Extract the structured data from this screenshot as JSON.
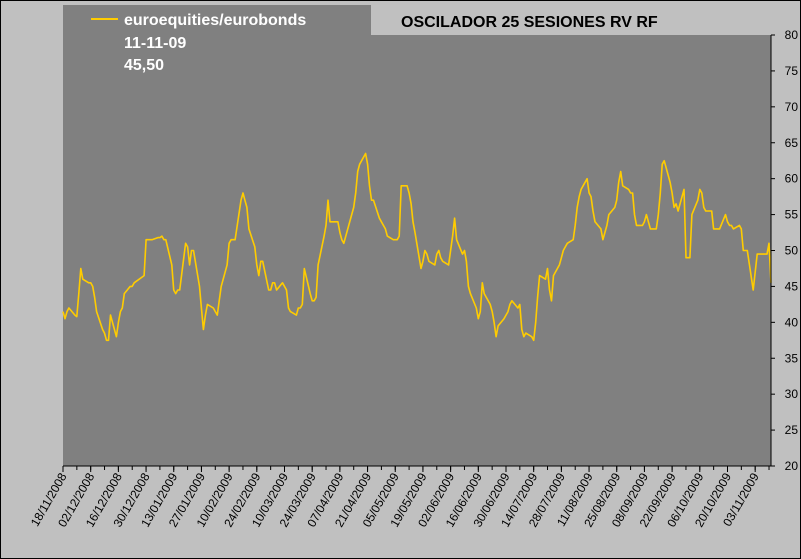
{
  "chart_data": {
    "type": "line",
    "title": "OSCILADOR 25 SESIONES RV RF",
    "legend": {
      "series_name": "euroequities/eurobonds",
      "date": "11-11-09",
      "value": "45,50",
      "placement": "top-left"
    },
    "ylim": [
      20,
      80
    ],
    "yticks": [
      20,
      25,
      30,
      35,
      40,
      45,
      50,
      55,
      60,
      65,
      70,
      75,
      80
    ],
    "y_axis_position": "right",
    "grid": false,
    "xlim": [
      "2008-11-18",
      "2009-11-11"
    ],
    "xtick_labels": [
      "18/11/2008",
      "02/12/2008",
      "16/12/2008",
      "30/12/2008",
      "13/01/2009",
      "27/01/2009",
      "10/02/2009",
      "24/02/2009",
      "10/03/2009",
      "24/03/2009",
      "07/04/2009",
      "21/04/2009",
      "05/05/2009",
      "19/05/2009",
      "02/06/2009",
      "16/06/2009",
      "30/06/2009",
      "14/07/2009",
      "28/07/2009",
      "11/08/2009",
      "25/08/2009",
      "08/09/2009",
      "22/09/2009",
      "06/10/2009",
      "20/10/2009",
      "03/11/2009"
    ],
    "colors": {
      "background": "#c0c0c0",
      "plot_area": "#808080",
      "line": "#ffcc00",
      "legend_box": "#808080",
      "legend_text": "#ffffff"
    },
    "series": [
      {
        "name": "euroequities/eurobonds",
        "points": [
          [
            "2008-11-18",
            41.5
          ],
          [
            "2008-11-19",
            40.5
          ],
          [
            "2008-11-20",
            41.5
          ],
          [
            "2008-11-21",
            42.0
          ],
          [
            "2008-11-24",
            41.0
          ],
          [
            "2008-11-25",
            40.8
          ],
          [
            "2008-11-26",
            44.0
          ],
          [
            "2008-11-27",
            47.5
          ],
          [
            "2008-11-28",
            46.0
          ],
          [
            "2008-12-01",
            45.5
          ],
          [
            "2008-12-02",
            45.5
          ],
          [
            "2008-12-03",
            45.0
          ],
          [
            "2008-12-04",
            43.5
          ],
          [
            "2008-12-05",
            41.5
          ],
          [
            "2008-12-08",
            39.0
          ],
          [
            "2008-12-09",
            38.5
          ],
          [
            "2008-12-10",
            37.5
          ],
          [
            "2008-12-11",
            37.5
          ],
          [
            "2008-12-12",
            41.0
          ],
          [
            "2008-12-15",
            38.0
          ],
          [
            "2008-12-16",
            40.0
          ],
          [
            "2008-12-17",
            41.5
          ],
          [
            "2008-12-18",
            42.0
          ],
          [
            "2008-12-19",
            44.0
          ],
          [
            "2008-12-22",
            45.0
          ],
          [
            "2008-12-23",
            45.0
          ],
          [
            "2008-12-24",
            45.5
          ],
          [
            "2008-12-29",
            46.5
          ],
          [
            "2008-12-30",
            51.5
          ],
          [
            "2008-12-31",
            51.5
          ],
          [
            "2009-01-02",
            51.5
          ],
          [
            "2009-01-05",
            51.8
          ],
          [
            "2009-01-06",
            51.8
          ],
          [
            "2009-01-07",
            52.0
          ],
          [
            "2009-01-08",
            51.5
          ],
          [
            "2009-01-09",
            51.5
          ],
          [
            "2009-01-12",
            48.0
          ],
          [
            "2009-01-13",
            44.5
          ],
          [
            "2009-01-14",
            44.0
          ],
          [
            "2009-01-15",
            44.5
          ],
          [
            "2009-01-16",
            44.5
          ],
          [
            "2009-01-19",
            51.0
          ],
          [
            "2009-01-20",
            50.5
          ],
          [
            "2009-01-21",
            48.0
          ],
          [
            "2009-01-22",
            50.0
          ],
          [
            "2009-01-23",
            50.0
          ],
          [
            "2009-01-26",
            45.0
          ],
          [
            "2009-01-27",
            42.0
          ],
          [
            "2009-01-28",
            39.0
          ],
          [
            "2009-01-29",
            41.0
          ],
          [
            "2009-01-30",
            42.5
          ],
          [
            "2009-02-02",
            42.0
          ],
          [
            "2009-02-03",
            41.5
          ],
          [
            "2009-02-04",
            41.0
          ],
          [
            "2009-02-05",
            43.0
          ],
          [
            "2009-02-06",
            45.0
          ],
          [
            "2009-02-09",
            48.0
          ],
          [
            "2009-02-10",
            51.0
          ],
          [
            "2009-02-11",
            51.5
          ],
          [
            "2009-02-12",
            51.5
          ],
          [
            "2009-02-13",
            51.5
          ],
          [
            "2009-02-16",
            57.0
          ],
          [
            "2009-02-17",
            58.0
          ],
          [
            "2009-02-18",
            57.0
          ],
          [
            "2009-02-19",
            56.0
          ],
          [
            "2009-02-20",
            53.0
          ],
          [
            "2009-02-23",
            50.5
          ],
          [
            "2009-02-24",
            48.0
          ],
          [
            "2009-02-25",
            46.5
          ],
          [
            "2009-02-26",
            48.5
          ],
          [
            "2009-02-27",
            48.5
          ],
          [
            "2009-03-02",
            44.5
          ],
          [
            "2009-03-03",
            44.5
          ],
          [
            "2009-03-04",
            45.5
          ],
          [
            "2009-03-05",
            45.5
          ],
          [
            "2009-03-06",
            44.5
          ],
          [
            "2009-03-09",
            45.5
          ],
          [
            "2009-03-10",
            45.0
          ],
          [
            "2009-03-11",
            44.5
          ],
          [
            "2009-03-12",
            42.0
          ],
          [
            "2009-03-13",
            41.5
          ],
          [
            "2009-03-16",
            41.0
          ],
          [
            "2009-03-17",
            42.0
          ],
          [
            "2009-03-18",
            42.0
          ],
          [
            "2009-03-19",
            42.5
          ],
          [
            "2009-03-20",
            47.5
          ],
          [
            "2009-03-23",
            44.0
          ],
          [
            "2009-03-24",
            43.0
          ],
          [
            "2009-03-25",
            43.0
          ],
          [
            "2009-03-26",
            43.5
          ],
          [
            "2009-03-27",
            48.0
          ],
          [
            "2009-03-30",
            52.0
          ],
          [
            "2009-03-31",
            53.5
          ],
          [
            "2009-04-01",
            57.0
          ],
          [
            "2009-04-02",
            54.0
          ],
          [
            "2009-04-03",
            54.0
          ],
          [
            "2009-04-06",
            54.0
          ],
          [
            "2009-04-07",
            52.5
          ],
          [
            "2009-04-08",
            51.5
          ],
          [
            "2009-04-09",
            51.0
          ],
          [
            "2009-04-14",
            56.0
          ],
          [
            "2009-04-15",
            58.0
          ],
          [
            "2009-04-16",
            61.0
          ],
          [
            "2009-04-17",
            62.0
          ],
          [
            "2009-04-20",
            63.5
          ],
          [
            "2009-04-21",
            62.0
          ],
          [
            "2009-04-22",
            59.0
          ],
          [
            "2009-04-23",
            57.0
          ],
          [
            "2009-04-24",
            57.0
          ],
          [
            "2009-04-27",
            54.5
          ],
          [
            "2009-04-28",
            54.0
          ],
          [
            "2009-04-29",
            53.5
          ],
          [
            "2009-04-30",
            53.0
          ],
          [
            "2009-05-01",
            52.0
          ],
          [
            "2009-05-04",
            51.5
          ],
          [
            "2009-05-05",
            51.5
          ],
          [
            "2009-05-06",
            51.5
          ],
          [
            "2009-05-07",
            52.0
          ],
          [
            "2009-05-08",
            59.0
          ],
          [
            "2009-05-11",
            59.0
          ],
          [
            "2009-05-12",
            58.0
          ],
          [
            "2009-05-13",
            56.5
          ],
          [
            "2009-05-14",
            54.0
          ],
          [
            "2009-05-15",
            52.5
          ],
          [
            "2009-05-18",
            47.5
          ],
          [
            "2009-05-19",
            48.5
          ],
          [
            "2009-05-20",
            50.0
          ],
          [
            "2009-05-21",
            49.5
          ],
          [
            "2009-05-22",
            48.5
          ],
          [
            "2009-05-25",
            48.0
          ],
          [
            "2009-05-26",
            49.5
          ],
          [
            "2009-05-27",
            50.0
          ],
          [
            "2009-05-28",
            49.0
          ],
          [
            "2009-05-29",
            48.5
          ],
          [
            "2009-06-01",
            48.0
          ],
          [
            "2009-06-02",
            50.0
          ],
          [
            "2009-06-03",
            52.0
          ],
          [
            "2009-06-04",
            54.5
          ],
          [
            "2009-06-05",
            51.5
          ],
          [
            "2009-06-08",
            49.5
          ],
          [
            "2009-06-09",
            50.0
          ],
          [
            "2009-06-10",
            48.5
          ],
          [
            "2009-06-11",
            45.0
          ],
          [
            "2009-06-12",
            44.0
          ],
          [
            "2009-06-15",
            42.0
          ],
          [
            "2009-06-16",
            40.5
          ],
          [
            "2009-06-17",
            41.5
          ],
          [
            "2009-06-18",
            45.5
          ],
          [
            "2009-06-19",
            44.0
          ],
          [
            "2009-06-22",
            42.5
          ],
          [
            "2009-06-23",
            41.5
          ],
          [
            "2009-06-24",
            40.0
          ],
          [
            "2009-06-25",
            38.0
          ],
          [
            "2009-06-26",
            39.5
          ],
          [
            "2009-06-29",
            40.5
          ],
          [
            "2009-06-30",
            41.0
          ],
          [
            "2009-07-01",
            41.5
          ],
          [
            "2009-07-02",
            42.5
          ],
          [
            "2009-07-03",
            43.0
          ],
          [
            "2009-07-06",
            42.0
          ],
          [
            "2009-07-07",
            42.5
          ],
          [
            "2009-07-08",
            39.0
          ],
          [
            "2009-07-09",
            38.0
          ],
          [
            "2009-07-10",
            38.5
          ],
          [
            "2009-07-13",
            38.0
          ],
          [
            "2009-07-14",
            37.5
          ],
          [
            "2009-07-15",
            40.0
          ],
          [
            "2009-07-16",
            43.5
          ],
          [
            "2009-07-17",
            46.5
          ],
          [
            "2009-07-20",
            46.0
          ],
          [
            "2009-07-21",
            47.5
          ],
          [
            "2009-07-22",
            44.5
          ],
          [
            "2009-07-23",
            43.0
          ],
          [
            "2009-07-24",
            46.5
          ],
          [
            "2009-07-27",
            48.0
          ],
          [
            "2009-07-28",
            49.0
          ],
          [
            "2009-07-29",
            50.0
          ],
          [
            "2009-07-30",
            50.5
          ],
          [
            "2009-07-31",
            51.0
          ],
          [
            "2009-08-03",
            51.5
          ],
          [
            "2009-08-04",
            53.5
          ],
          [
            "2009-08-05",
            56.0
          ],
          [
            "2009-08-06",
            57.5
          ],
          [
            "2009-08-07",
            58.5
          ],
          [
            "2009-08-10",
            60.0
          ],
          [
            "2009-08-11",
            58.0
          ],
          [
            "2009-08-12",
            57.5
          ],
          [
            "2009-08-13",
            55.5
          ],
          [
            "2009-08-14",
            54.0
          ],
          [
            "2009-08-17",
            53.0
          ],
          [
            "2009-08-18",
            51.5
          ],
          [
            "2009-08-19",
            52.5
          ],
          [
            "2009-08-20",
            53.5
          ],
          [
            "2009-08-21",
            55.0
          ],
          [
            "2009-08-24",
            56.0
          ],
          [
            "2009-08-25",
            57.0
          ],
          [
            "2009-08-26",
            59.5
          ],
          [
            "2009-08-27",
            61.0
          ],
          [
            "2009-08-28",
            59.0
          ],
          [
            "2009-08-31",
            58.5
          ],
          [
            "2009-09-01",
            58.0
          ],
          [
            "2009-09-02",
            58.0
          ],
          [
            "2009-09-03",
            55.0
          ],
          [
            "2009-09-04",
            53.5
          ],
          [
            "2009-09-07",
            53.5
          ],
          [
            "2009-09-08",
            54.0
          ],
          [
            "2009-09-09",
            55.0
          ],
          [
            "2009-09-10",
            54.0
          ],
          [
            "2009-09-11",
            53.0
          ],
          [
            "2009-09-14",
            53.0
          ],
          [
            "2009-09-15",
            55.0
          ],
          [
            "2009-09-16",
            58.0
          ],
          [
            "2009-09-17",
            62.0
          ],
          [
            "2009-09-18",
            62.5
          ],
          [
            "2009-09-21",
            59.5
          ],
          [
            "2009-09-22",
            58.0
          ],
          [
            "2009-09-23",
            56.0
          ],
          [
            "2009-09-24",
            56.5
          ],
          [
            "2009-09-25",
            55.5
          ],
          [
            "2009-09-28",
            58.5
          ],
          [
            "2009-09-29",
            49.0
          ],
          [
            "2009-09-30",
            49.0
          ],
          [
            "2009-10-01",
            49.0
          ],
          [
            "2009-10-02",
            55.0
          ],
          [
            "2009-10-05",
            57.0
          ],
          [
            "2009-10-06",
            58.5
          ],
          [
            "2009-10-07",
            58.0
          ],
          [
            "2009-10-08",
            56.0
          ],
          [
            "2009-10-09",
            55.5
          ],
          [
            "2009-10-12",
            55.5
          ],
          [
            "2009-10-13",
            53.0
          ],
          [
            "2009-10-14",
            53.0
          ],
          [
            "2009-10-15",
            53.0
          ],
          [
            "2009-10-16",
            53.0
          ],
          [
            "2009-10-19",
            55.0
          ],
          [
            "2009-10-20",
            54.0
          ],
          [
            "2009-10-21",
            53.5
          ],
          [
            "2009-10-22",
            53.5
          ],
          [
            "2009-10-23",
            53.0
          ],
          [
            "2009-10-26",
            53.5
          ],
          [
            "2009-10-27",
            53.0
          ],
          [
            "2009-10-28",
            50.0
          ],
          [
            "2009-10-29",
            50.0
          ],
          [
            "2009-10-30",
            50.0
          ],
          [
            "2009-11-02",
            44.5
          ],
          [
            "2009-11-03",
            47.0
          ],
          [
            "2009-11-04",
            49.5
          ],
          [
            "2009-11-05",
            49.5
          ],
          [
            "2009-11-06",
            49.5
          ],
          [
            "2009-11-09",
            49.5
          ],
          [
            "2009-11-10",
            51.0
          ],
          [
            "2009-11-11",
            45.5
          ]
        ]
      }
    ]
  }
}
